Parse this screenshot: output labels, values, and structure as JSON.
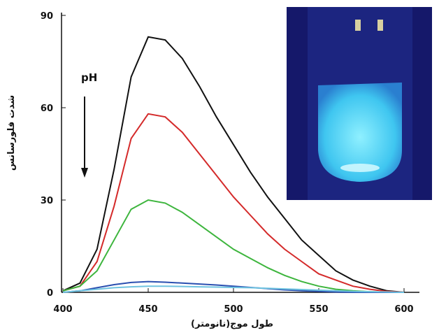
{
  "chart_data": {
    "type": "line",
    "x_label": "طول موج(نانومتر)",
    "y_label": "شدت فلورسانس",
    "annotation": "pH",
    "x": [
      400,
      410,
      420,
      430,
      440,
      450,
      460,
      470,
      480,
      490,
      500,
      510,
      520,
      530,
      540,
      550,
      560,
      570,
      580,
      590,
      600
    ],
    "series": [
      {
        "color": "#111111",
        "values": [
          0.5,
          3,
          14,
          40,
          70,
          83,
          82,
          76,
          67,
          57,
          48,
          39,
          31,
          24,
          17,
          12,
          7,
          4,
          2,
          0.5,
          0
        ]
      },
      {
        "color": "#d42a2a",
        "values": [
          0.5,
          2,
          10,
          28,
          50,
          58,
          57,
          52,
          45,
          38,
          31,
          25,
          19,
          14,
          10,
          6,
          4,
          2,
          1,
          0.3,
          0
        ]
      },
      {
        "color": "#3db53d",
        "values": [
          0.5,
          2,
          7,
          17,
          27,
          30,
          29,
          26,
          22,
          18,
          14,
          11,
          8,
          5.5,
          3.5,
          2,
          1,
          0.5,
          0.2,
          0,
          0
        ]
      },
      {
        "color": "#2a4fb0",
        "values": [
          0,
          0.5,
          1.5,
          2.5,
          3.2,
          3.5,
          3.3,
          3,
          2.7,
          2.4,
          2,
          1.6,
          1.2,
          0.8,
          0.5,
          0.3,
          0.1,
          0,
          0,
          0,
          0
        ]
      },
      {
        "color": "#6fc3e0",
        "values": [
          0,
          0.5,
          1,
          1.5,
          1.8,
          2,
          2,
          1.9,
          1.8,
          1.7,
          1.6,
          1.5,
          1.3,
          1.1,
          0.9,
          0.7,
          0.5,
          0.3,
          0.2,
          0.1,
          0
        ]
      }
    ],
    "xlim": [
      400,
      600
    ],
    "xticks": [
      400,
      450,
      500,
      550,
      600
    ],
    "ylim": [
      0,
      90
    ],
    "yticks": [
      0,
      30,
      60,
      90
    ]
  }
}
